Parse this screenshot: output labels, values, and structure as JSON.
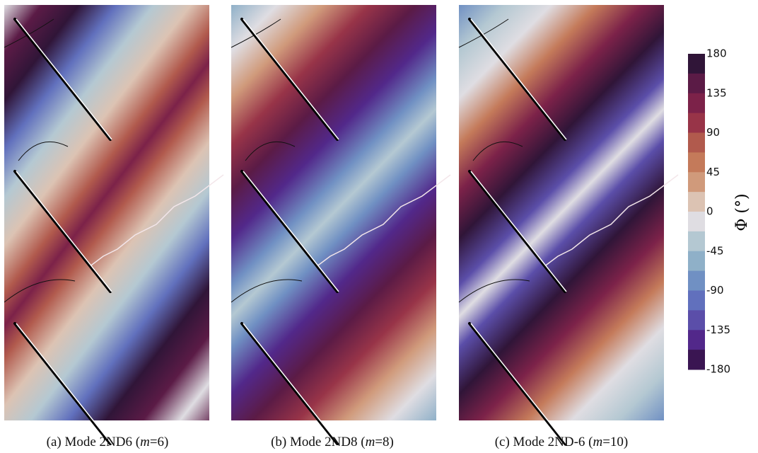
{
  "panels": [
    {
      "caption": [
        "(a) Mode 2ND6 (",
        "m",
        "=6)"
      ]
    },
    {
      "caption": [
        "(b) Mode 2ND8 (",
        "m",
        "=8)"
      ]
    },
    {
      "caption": [
        "(c) Mode 2ND-6 (",
        "m",
        "=10)"
      ]
    }
  ],
  "colorbar": {
    "label": "Φ (°)",
    "ticks": [
      "180",
      "135",
      "90",
      "45",
      "0",
      "-45",
      "-90",
      "-135",
      "-180"
    ]
  }
}
